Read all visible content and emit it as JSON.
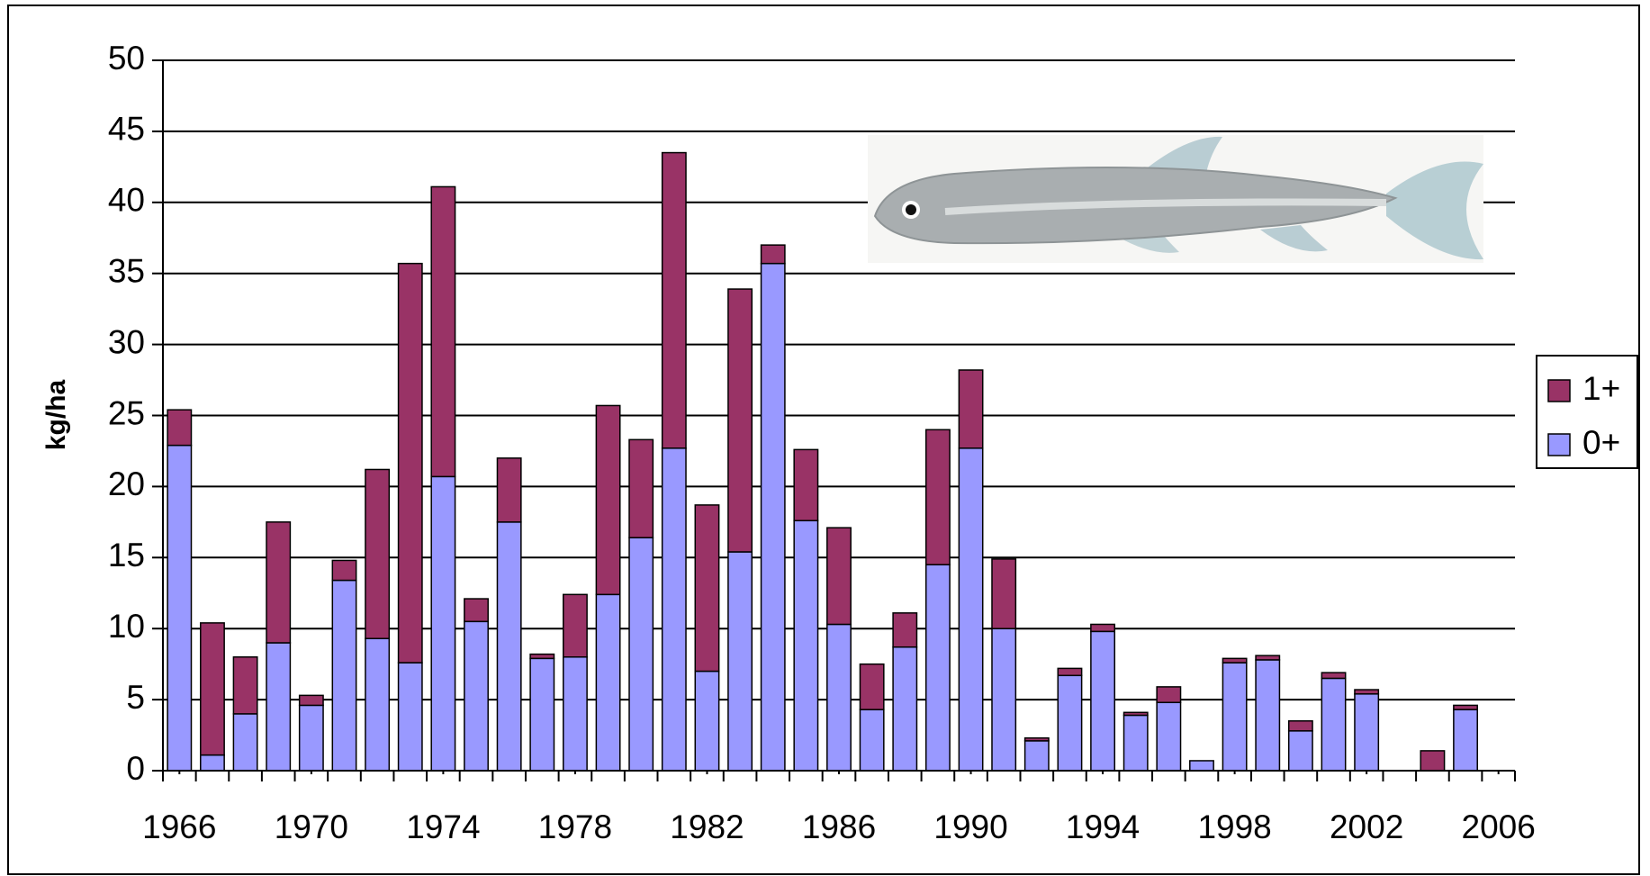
{
  "chart_data": {
    "type": "bar",
    "stacked": true,
    "y_label": "kg/ha",
    "x": [
      1966,
      1967,
      1968,
      1969,
      1970,
      1971,
      1972,
      1973,
      1974,
      1975,
      1976,
      1977,
      1978,
      1979,
      1980,
      1981,
      1982,
      1983,
      1984,
      1985,
      1986,
      1987,
      1988,
      1989,
      1990,
      1991,
      1992,
      1993,
      1994,
      1995,
      1996,
      1997,
      1998,
      1999,
      2000,
      2001,
      2002,
      2003,
      2004,
      2005
    ],
    "series": [
      {
        "name": "0+",
        "color": "#9999ff",
        "values": [
          22.9,
          1.1,
          4.0,
          9.0,
          4.6,
          13.4,
          9.3,
          7.6,
          20.7,
          10.5,
          17.5,
          7.9,
          8.0,
          12.4,
          16.4,
          22.7,
          7.0,
          15.4,
          35.7,
          17.6,
          10.3,
          4.3,
          8.7,
          14.5,
          22.7,
          10.0,
          2.1,
          6.7,
          9.8,
          3.9,
          4.8,
          0.7,
          7.6,
          7.8,
          2.8,
          6.5,
          5.4,
          null,
          0,
          4.3
        ]
      },
      {
        "name": "1+",
        "color": "#993366",
        "values": [
          2.5,
          9.3,
          4.0,
          8.5,
          0.7,
          1.4,
          11.9,
          28.1,
          20.4,
          1.6,
          4.5,
          0.3,
          4.4,
          13.3,
          6.9,
          20.8,
          11.7,
          18.5,
          1.3,
          5.0,
          6.8,
          3.2,
          2.4,
          9.5,
          5.5,
          4.9,
          0.2,
          0.5,
          0.5,
          0.2,
          1.1,
          0,
          0.3,
          0.3,
          0.7,
          0.4,
          0.3,
          null,
          1.4,
          0.3
        ]
      }
    ],
    "xlim": [
      1965.5,
      2006.5
    ],
    "xticks": [
      1966,
      1970,
      1974,
      1978,
      1982,
      1986,
      1990,
      1994,
      1998,
      2002,
      2006
    ],
    "ylim": [
      0,
      50
    ],
    "yticks": [
      0,
      5,
      10,
      15,
      20,
      25,
      30,
      35,
      40,
      45,
      50
    ],
    "grid": true,
    "legend": "right"
  }
}
